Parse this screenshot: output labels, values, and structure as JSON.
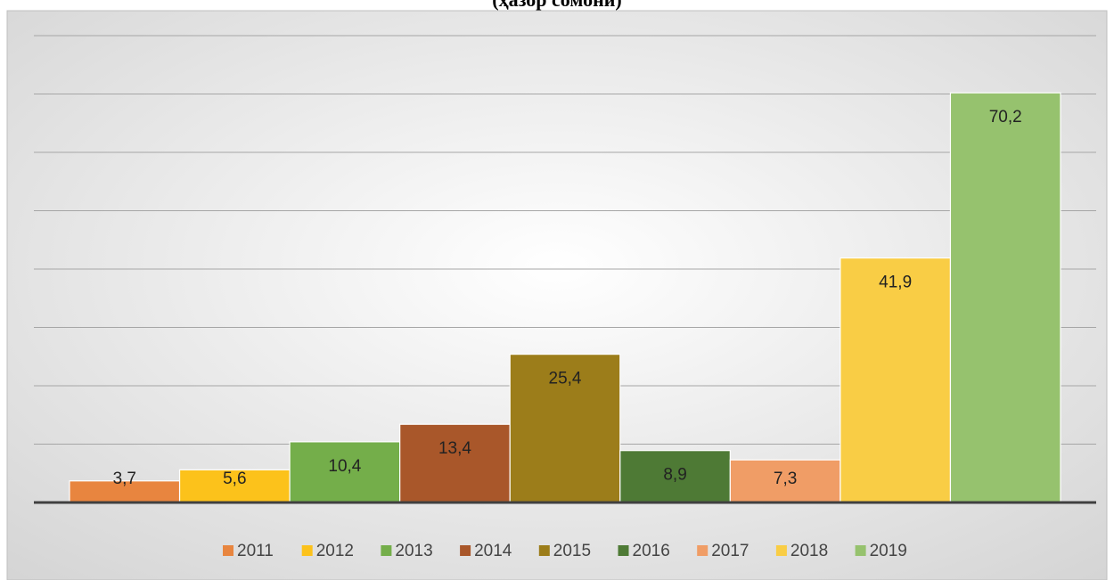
{
  "chart_data": {
    "type": "bar",
    "title": "(ҳазор сомонӣ)",
    "series": [
      {
        "name": "2011",
        "color": "#e8853f",
        "values": [
          3.7
        ],
        "value_labels": [
          "3,7"
        ]
      },
      {
        "name": "2012",
        "color": "#fcc21b",
        "values": [
          5.6
        ],
        "value_labels": [
          "5,6"
        ]
      },
      {
        "name": "2013",
        "color": "#74ae4a",
        "values": [
          10.4
        ],
        "value_labels": [
          "10,4"
        ]
      },
      {
        "name": "2014",
        "color": "#a9572a",
        "values": [
          13.4
        ],
        "value_labels": [
          "13,4"
        ]
      },
      {
        "name": "2015",
        "color": "#9c7d1a",
        "values": [
          25.4
        ],
        "value_labels": [
          "25,4"
        ]
      },
      {
        "name": "2016",
        "color": "#4e7a35",
        "values": [
          8.9
        ],
        "value_labels": [
          "8,9"
        ]
      },
      {
        "name": "2017",
        "color": "#f09d66",
        "values": [
          7.3
        ],
        "value_labels": [
          "7,3"
        ]
      },
      {
        "name": "2018",
        "color": "#f9cd45",
        "values": [
          41.9
        ],
        "value_labels": [
          "41,9"
        ]
      },
      {
        "name": "2019",
        "color": "#96c26e",
        "values": [
          70.2
        ],
        "value_labels": [
          "70,2"
        ]
      }
    ],
    "ylim": [
      0,
      80
    ],
    "yticks": [
      0,
      10,
      20,
      30,
      40,
      50,
      60,
      70,
      80
    ],
    "grid": true,
    "legend": "bottom"
  }
}
